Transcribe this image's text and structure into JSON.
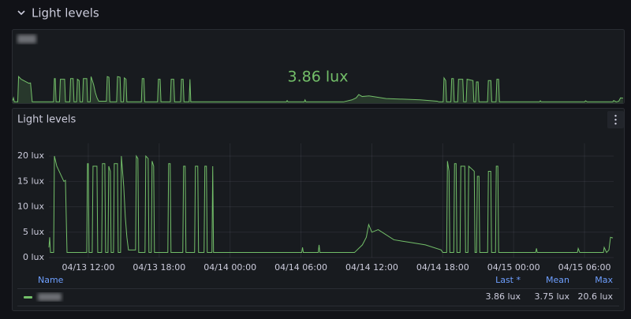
{
  "section": {
    "title": "Light levels"
  },
  "stat_panel": {
    "value_label": "3.86 lux"
  },
  "chart_data": {
    "type": "line",
    "title": "Light levels",
    "x": [
      "04/13 08:40",
      "04/13 08:44",
      "04/13 08:48",
      "04/13 09:04",
      "04/13 09:08",
      "04/13 09:20",
      "04/13 09:56",
      "04/13 10:04",
      "04/13 10:12",
      "04/13 11:52",
      "04/13 11:56",
      "04/13 12:00",
      "04/13 12:04",
      "04/13 12:20",
      "04/13 12:24",
      "04/13 12:44",
      "04/13 12:48",
      "04/13 13:08",
      "04/13 13:12",
      "04/13 13:24",
      "04/13 13:28",
      "04/13 13:40",
      "04/13 13:44",
      "04/13 13:52",
      "04/13 13:56",
      "04/13 14:08",
      "04/13 14:12",
      "04/13 14:28",
      "04/13 14:32",
      "04/13 14:44",
      "04/13 14:48",
      "04/13 15:00",
      "04/13 15:08",
      "04/13 15:16",
      "04/13 15:24",
      "04/13 16:00",
      "04/13 16:04",
      "04/13 16:12",
      "04/13 16:16",
      "04/13 16:48",
      "04/13 16:52",
      "04/13 17:04",
      "04/13 17:08",
      "04/13 17:20",
      "04/13 17:24",
      "04/13 17:32",
      "04/13 17:36",
      "04/13 18:44",
      "04/13 18:48",
      "04/13 18:56",
      "04/13 19:00",
      "04/13 20:00",
      "04/13 20:04",
      "04/13 20:12",
      "04/13 20:16",
      "04/13 21:00",
      "04/13 21:04",
      "04/13 21:16",
      "04/13 21:20",
      "04/13 21:48",
      "04/13 21:52",
      "04/13 22:00",
      "04/13 22:04",
      "04/13 22:28",
      "04/13 22:32",
      "04/13 22:36",
      "04/14 06:04",
      "04/14 06:08",
      "04/14 06:12",
      "04/14 07:28",
      "04/14 07:32",
      "04/14 07:36",
      "04/14 10:32",
      "04/14 11:12",
      "04/14 11:32",
      "04/14 11:44",
      "04/14 12:00",
      "04/14 12:32",
      "04/14 13:52",
      "04/14 15:12",
      "04/14 16:32",
      "04/14 17:52",
      "04/14 18:00",
      "04/14 18:20",
      "04/14 18:24",
      "04/14 18:32",
      "04/14 18:36",
      "04/14 18:56",
      "04/14 19:00",
      "04/14 19:08",
      "04/14 19:12",
      "04/14 19:28",
      "04/14 19:32",
      "04/14 19:52",
      "04/14 19:56",
      "04/14 20:08",
      "04/14 20:12",
      "04/14 20:40",
      "04/14 20:44",
      "04/14 20:52",
      "04/14 20:56",
      "04/14 21:04",
      "04/14 21:08",
      "04/14 21:48",
      "04/14 21:52",
      "04/14 22:04",
      "04/14 22:08",
      "04/14 22:28",
      "04/14 22:32",
      "04/14 22:40",
      "04/14 22:44",
      "04/15 01:52",
      "04/15 01:56",
      "04/15 02:00",
      "04/15 05:24",
      "04/15 05:28",
      "04/15 05:36",
      "04/15 07:36",
      "04/15 07:40",
      "04/15 07:52",
      "04/15 08:04",
      "04/15 08:12",
      "04/15 08:24"
    ],
    "series": [
      {
        "color": "#73bf69",
        "values": [
          2,
          4,
          1,
          1,
          20,
          18,
          15,
          15.2,
          1,
          1,
          18.5,
          18.5,
          1,
          1,
          18,
          18,
          1,
          1,
          18.5,
          18.5,
          1,
          1,
          18,
          17,
          1,
          1,
          18.5,
          18.5,
          1,
          1,
          20,
          14,
          8,
          4,
          1.5,
          1.5,
          20,
          19.5,
          1,
          1,
          20,
          19.5,
          1,
          1,
          19,
          18,
          1,
          1,
          18.5,
          18.5,
          1,
          1,
          18,
          18,
          1,
          1,
          18,
          18,
          1,
          1,
          18,
          18,
          1,
          1,
          18,
          1,
          1,
          2,
          1,
          1,
          2.5,
          1,
          1,
          2.5,
          4,
          6.5,
          5,
          5.5,
          3.5,
          3,
          2.5,
          1.5,
          1,
          1,
          19,
          17,
          1,
          1,
          18.5,
          18.5,
          1,
          1,
          18,
          18,
          1,
          1,
          18,
          17,
          1,
          1,
          16,
          16,
          1,
          1,
          17,
          17,
          1,
          1,
          18,
          18,
          1,
          1,
          1.8,
          1,
          1,
          1.8,
          1,
          1,
          2,
          1,
          1.5,
          4,
          3.86
        ]
      }
    ],
    "xlim": [
      "04/13 08:40",
      "04/15 08:28"
    ],
    "xticks": [
      "04/13 12:00",
      "04/13 18:00",
      "04/14 00:00",
      "04/14 06:00",
      "04/14 12:00",
      "04/14 18:00",
      "04/15 00:00",
      "04/15 06:00"
    ],
    "ylim": [
      0,
      22.5
    ],
    "yticks": [
      {
        "value": 0,
        "label": "0 lux"
      },
      {
        "value": 5,
        "label": "5 lux"
      },
      {
        "value": 10,
        "label": "10 lux"
      },
      {
        "value": 15,
        "label": "15 lux"
      },
      {
        "value": 20,
        "label": "20 lux"
      }
    ],
    "grid": true,
    "legend": {
      "headers": [
        "Name",
        "Last *",
        "Mean",
        "Max"
      ],
      "values": [
        "3.86 lux",
        "3.75 lux",
        "20.6 lux"
      ]
    }
  }
}
